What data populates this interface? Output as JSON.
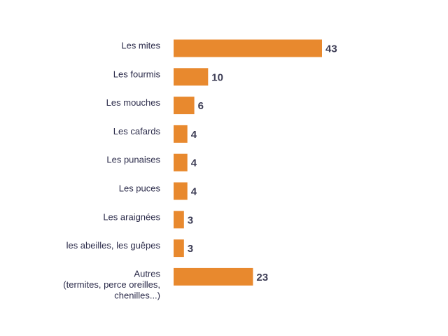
{
  "chart_data": {
    "type": "bar",
    "orientation": "horizontal",
    "categories": [
      [
        "Les mites"
      ],
      [
        "Les fourmis"
      ],
      [
        "Les mouches"
      ],
      [
        "Les cafards"
      ],
      [
        "Les punaises"
      ],
      [
        "Les puces"
      ],
      [
        "Les araignées"
      ],
      [
        "les abeilles, les guêpes"
      ],
      [
        "Autres",
        "(termites, perce oreilles,",
        "chenilles...)"
      ]
    ],
    "values": [
      43,
      10,
      6,
      4,
      4,
      4,
      3,
      3,
      23
    ],
    "bar_color": "#e8892e",
    "grid": false,
    "legend": "none"
  }
}
